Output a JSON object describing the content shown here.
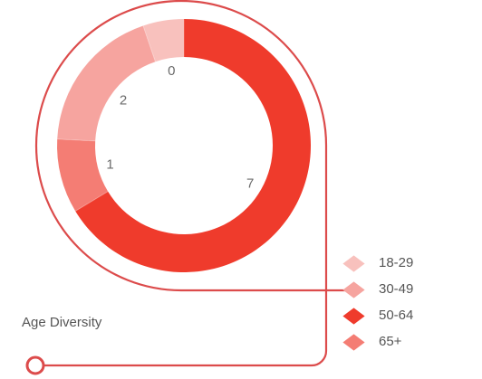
{
  "chart_data": {
    "type": "pie",
    "title": "Age Diversity",
    "categories": [
      "18-29",
      "30-49",
      "50-64",
      "65+"
    ],
    "values": [
      0,
      2,
      7,
      1
    ],
    "colors": [
      "#f8c1bd",
      "#f6a49f",
      "#ef3b2c",
      "#f47d74"
    ],
    "legend_position": "bottom-right",
    "donut": true
  }
}
